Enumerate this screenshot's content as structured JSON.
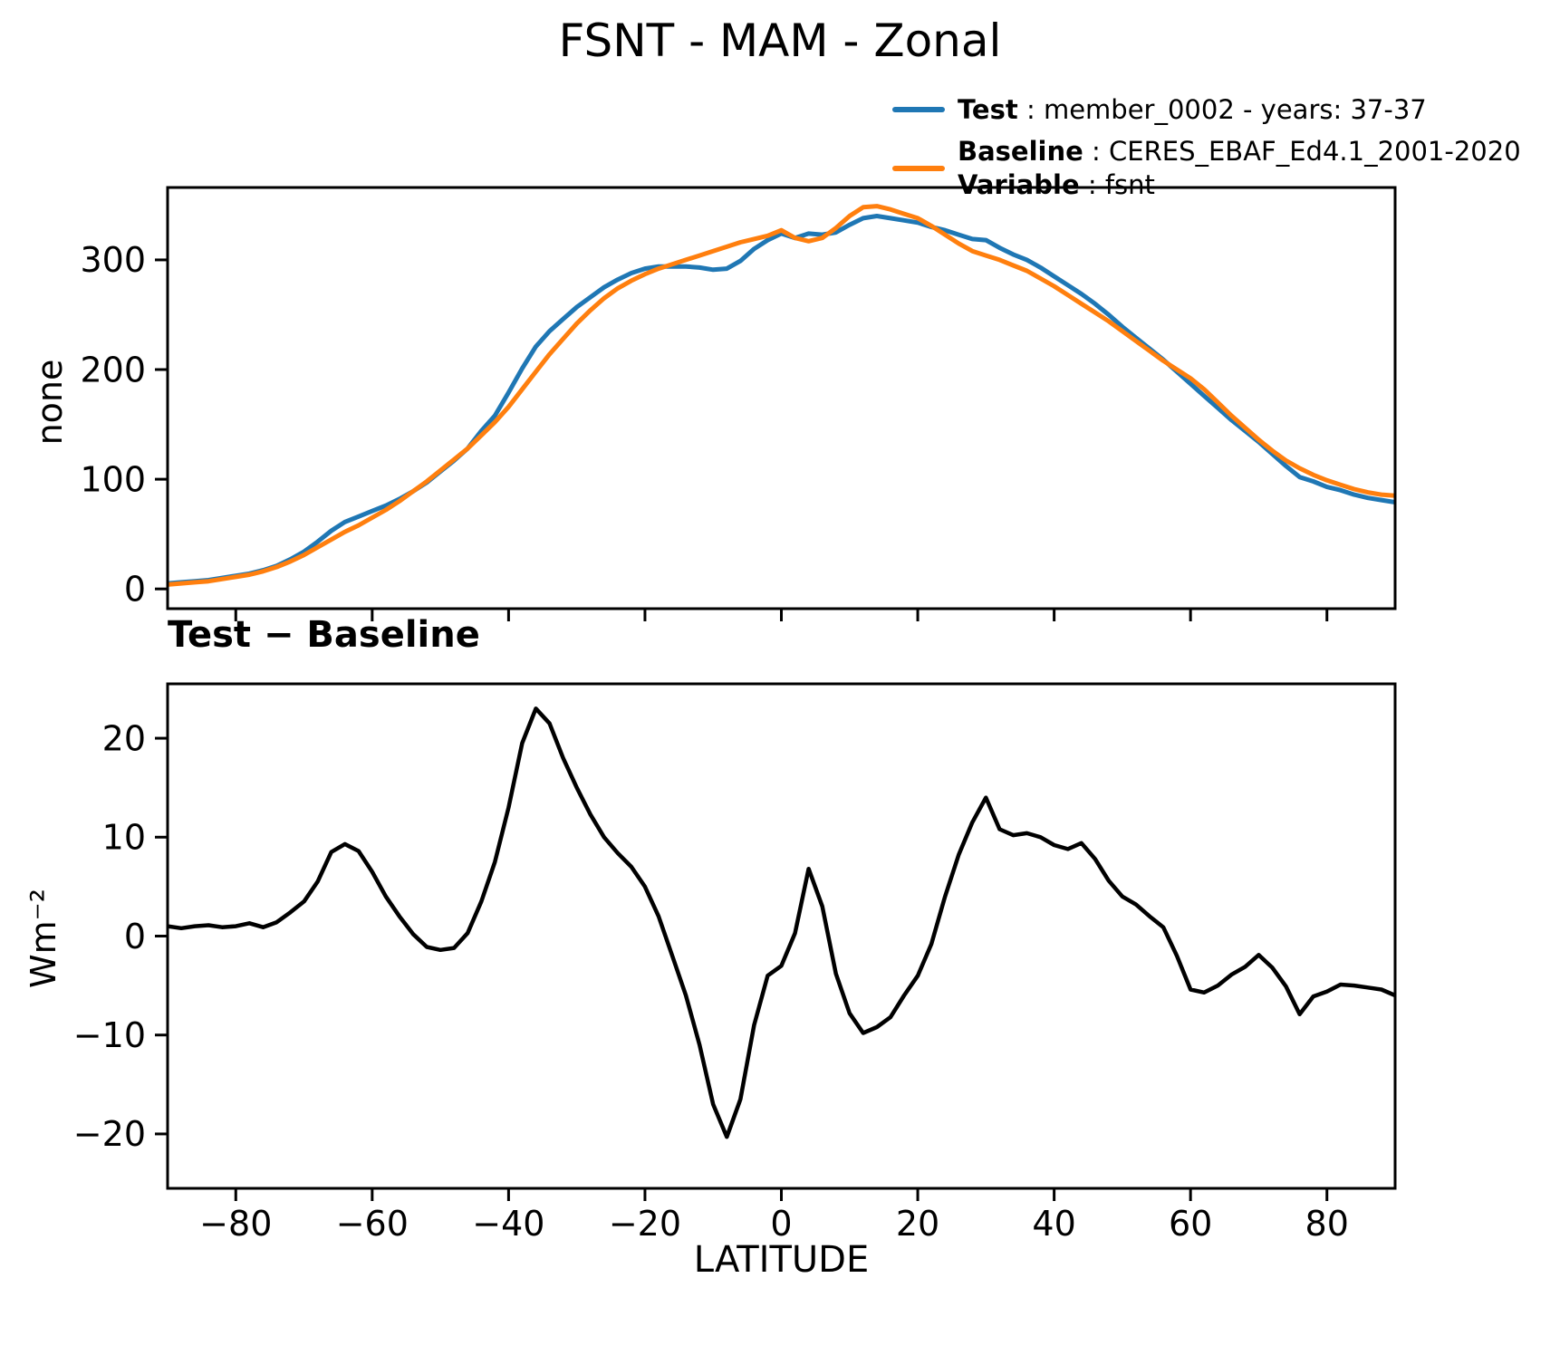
{
  "title": "FSNT - MAM - Zonal",
  "legend": {
    "separator": " : ",
    "entries": [
      {
        "label": "Test",
        "value": "member_0002 - years: 37-37",
        "color": "#1f77b4"
      },
      {
        "label": "Baseline",
        "value": "CERES_EBAF_Ed4.1_2001-2020",
        "color": "#ff7f0e"
      },
      {
        "label": "Variable",
        "value": "fsnt"
      }
    ]
  },
  "chart_data": [
    {
      "type": "line",
      "title": "",
      "xlabel": "",
      "ylabel": "none",
      "xlim": [
        -90,
        90
      ],
      "ylim": [
        -18,
        366
      ],
      "yticks": [
        0,
        100,
        200,
        300
      ],
      "xticks": [
        -80,
        -60,
        -40,
        -20,
        0,
        20,
        40,
        60,
        80
      ],
      "show_xticklabels": false,
      "grid": false,
      "x": [
        -90,
        -88,
        -86,
        -84,
        -82,
        -80,
        -78,
        -76,
        -74,
        -72,
        -70,
        -68,
        -66,
        -64,
        -62,
        -60,
        -58,
        -56,
        -54,
        -52,
        -50,
        -48,
        -46,
        -44,
        -42,
        -40,
        -38,
        -36,
        -34,
        -32,
        -30,
        -28,
        -26,
        -24,
        -22,
        -20,
        -18,
        -16,
        -14,
        -12,
        -10,
        -8,
        -6,
        -4,
        -2,
        0,
        2,
        4,
        6,
        8,
        10,
        12,
        14,
        16,
        18,
        20,
        22,
        24,
        26,
        28,
        30,
        32,
        34,
        36,
        38,
        40,
        42,
        44,
        46,
        48,
        50,
        52,
        54,
        56,
        58,
        60,
        62,
        64,
        66,
        68,
        70,
        72,
        74,
        76,
        78,
        80,
        82,
        84,
        86,
        88,
        90
      ],
      "series": [
        {
          "name": "Test",
          "color": "#1f77b4",
          "line_width": 5,
          "values": [
            5,
            6,
            7,
            8,
            10,
            12,
            14,
            17,
            21,
            27,
            34,
            43,
            53,
            61,
            66,
            71,
            76,
            82,
            89,
            97,
            107,
            117,
            128,
            144,
            158,
            179,
            201,
            221,
            235,
            246,
            257,
            266,
            275,
            282,
            288,
            292,
            294,
            294,
            294,
            293,
            291,
            292,
            299,
            310,
            318,
            324,
            320,
            324,
            323,
            325,
            332,
            338,
            340,
            338,
            336,
            334,
            330,
            327,
            323,
            319,
            318,
            311,
            305,
            300,
            293,
            285,
            277,
            269,
            260,
            250,
            239,
            229,
            219,
            209,
            198,
            187,
            176,
            165,
            154,
            144,
            134,
            123,
            112,
            102,
            98,
            93,
            90,
            86,
            83,
            81,
            79
          ]
        },
        {
          "name": "Baseline",
          "color": "#ff7f0e",
          "line_width": 5,
          "values": [
            4,
            5,
            6,
            7,
            9,
            11,
            13,
            16,
            20,
            25,
            31,
            38,
            45,
            52,
            58,
            65,
            72,
            80,
            89,
            98,
            108,
            118,
            128,
            140,
            152,
            166,
            182,
            198,
            214,
            228,
            242,
            254,
            265,
            274,
            281,
            287,
            292,
            296,
            300,
            304,
            308,
            312,
            316,
            319,
            322,
            327,
            320,
            317,
            320,
            329,
            340,
            348,
            349,
            346,
            342,
            338,
            331,
            323,
            315,
            308,
            304,
            300,
            295,
            290,
            283,
            276,
            268,
            260,
            252,
            244,
            235,
            226,
            217,
            208,
            200,
            192,
            182,
            170,
            158,
            147,
            136,
            126,
            117,
            110,
            104,
            99,
            95,
            91,
            88,
            86,
            85
          ]
        }
      ]
    },
    {
      "type": "line",
      "title": "Test − Baseline",
      "xlabel": "LATITUDE",
      "ylabel": "Wm⁻²",
      "xlim": [
        -90,
        90
      ],
      "ylim": [
        -25.5,
        25.5
      ],
      "yticks": [
        -20,
        -10,
        0,
        10,
        20
      ],
      "xticks": [
        -80,
        -60,
        -40,
        -20,
        0,
        20,
        40,
        60,
        80
      ],
      "show_xticklabels": true,
      "grid": false,
      "x": [
        -90,
        -88,
        -86,
        -84,
        -82,
        -80,
        -78,
        -76,
        -74,
        -72,
        -70,
        -68,
        -66,
        -64,
        -62,
        -60,
        -58,
        -56,
        -54,
        -52,
        -50,
        -48,
        -46,
        -44,
        -42,
        -40,
        -38,
        -36,
        -34,
        -32,
        -30,
        -28,
        -26,
        -24,
        -22,
        -20,
        -18,
        -16,
        -14,
        -12,
        -10,
        -8,
        -6,
        -4,
        -2,
        0,
        2,
        4,
        6,
        8,
        10,
        12,
        14,
        16,
        18,
        20,
        22,
        24,
        26,
        28,
        30,
        32,
        34,
        36,
        38,
        40,
        42,
        44,
        46,
        48,
        50,
        52,
        54,
        56,
        58,
        60,
        62,
        64,
        66,
        68,
        70,
        72,
        74,
        76,
        78,
        80,
        82,
        84,
        86,
        88,
        90
      ],
      "series": [
        {
          "name": "Test − Baseline",
          "color": "#000000",
          "line_width": 4.5,
          "values": [
            1,
            0.8,
            1,
            1.1,
            0.9,
            1,
            1.3,
            0.9,
            1.4,
            2.4,
            3.5,
            5.5,
            8.5,
            9.3,
            8.6,
            6.5,
            4,
            2,
            0.2,
            -1.1,
            -1.4,
            -1.2,
            0.3,
            3.5,
            7.5,
            13,
            19.5,
            23,
            21.5,
            18,
            15,
            12.3,
            10,
            8.4,
            7,
            5,
            2,
            -2,
            -6,
            -11,
            -17,
            -20.3,
            -16.5,
            -9,
            -4,
            -3,
            0.3,
            6.8,
            3,
            -3.8,
            -7.8,
            -9.8,
            -9.2,
            -8.2,
            -6,
            -4,
            -0.8,
            4,
            8.2,
            11.5,
            14,
            10.8,
            10.2,
            10.4,
            10,
            9.2,
            8.8,
            9.4,
            7.8,
            5.6,
            4,
            3.2,
            2,
            0.9,
            -2,
            -5.4,
            -5.7,
            -5,
            -3.9,
            -3.1,
            -1.9,
            -3.2,
            -5.1,
            -7.9,
            -6.1,
            -5.6,
            -4.9,
            -5,
            -5.2,
            -5.4,
            -6
          ]
        }
      ]
    }
  ]
}
